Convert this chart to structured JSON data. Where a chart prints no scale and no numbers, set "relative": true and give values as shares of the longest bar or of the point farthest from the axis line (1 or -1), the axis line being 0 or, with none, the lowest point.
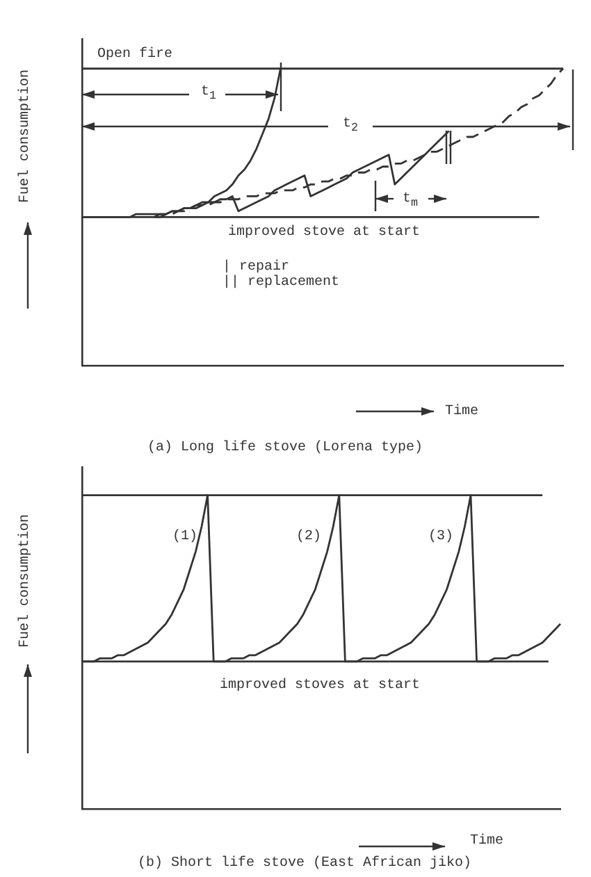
{
  "chart_data": [
    {
      "type": "line",
      "title": "(a) Long life stove (Lorena type)",
      "xlabel": "Time",
      "ylabel": "Fuel consumption",
      "relative": true,
      "marker": "none",
      "categories": [
        null,
        null,
        null,
        null,
        null,
        null,
        null,
        null,
        null,
        null,
        null,
        null,
        null,
        null,
        null,
        null,
        null,
        null,
        null,
        null,
        null,
        null,
        null,
        null,
        null,
        null,
        null,
        null,
        null,
        null,
        null,
        null,
        null,
        null,
        null,
        null,
        null,
        null,
        null,
        null,
        null,
        null,
        null,
        null,
        null,
        null,
        null,
        null,
        null,
        null,
        null,
        null,
        null,
        null,
        null,
        null,
        null,
        null,
        null,
        null,
        null,
        null,
        null,
        null,
        null,
        null,
        null,
        null,
        null,
        null,
        null,
        null,
        null,
        null,
        null,
        null,
        null,
        null,
        null,
        null,
        null
      ],
      "annotations": [
        "t$_{1}$",
        "t$_{2}$",
        "t$_{m}$",
        "| repair",
        "|| replacement"
      ],
      "series": [
        {
          "name": "Open fire",
          "color": "#333333",
          "values": [
            1,
            1,
            1,
            1,
            1,
            1,
            1,
            1,
            1,
            1,
            1,
            1,
            1,
            1,
            1,
            1,
            1,
            1,
            1,
            1,
            1,
            1,
            1,
            1,
            1,
            1,
            1,
            1,
            1,
            1,
            1,
            1,
            1,
            1,
            1,
            1,
            1,
            1,
            1,
            1,
            1,
            1,
            1,
            1,
            1,
            1,
            1,
            1,
            1,
            1,
            1,
            1,
            1,
            1,
            1,
            1,
            1,
            1,
            1,
            1,
            1,
            1,
            1,
            1,
            1,
            1,
            1,
            1,
            1,
            1,
            1,
            1,
            1,
            1,
            1,
            1,
            1,
            1,
            1,
            1,
            1
          ]
        },
        {
          "name": "improved stove at start",
          "color": "#333333",
          "values": [
            0.5,
            0.5,
            0.5,
            0.5,
            0.5,
            0.5,
            0.5,
            0.5,
            0.5,
            0.5,
            0.5,
            0.5,
            0.5,
            0.5,
            0.5,
            0.5,
            0.5,
            0.5,
            0.5,
            0.5,
            0.5,
            0.5,
            0.5,
            0.5,
            0.5,
            0.5,
            0.5,
            0.5,
            0.5,
            0.5,
            0.5,
            0.5,
            0.5,
            0.5,
            0.5,
            0.5,
            0.5,
            0.5,
            0.5,
            0.5,
            0.5,
            0.5,
            0.5,
            0.5,
            0.5,
            0.5,
            0.5,
            0.5,
            0.5,
            0.5,
            0.5,
            0.5,
            0.5,
            0.5,
            0.5,
            0.5,
            0.5,
            0.5,
            0.5,
            0.5,
            0.5,
            0.5,
            0.5,
            0.5,
            0.5,
            0.5,
            0.5,
            0.5,
            0.5,
            0.5,
            0.5,
            0.5,
            0.5,
            0.5,
            0.5,
            0.5,
            0.5,
            null,
            null,
            null,
            null
          ]
        },
        {
          "color": "#333333",
          "values": [
            0.5,
            0.5,
            0.5,
            0.5,
            0.5,
            0.5,
            0.5,
            0.5,
            0.5,
            0.51,
            0.51,
            0.51,
            0.51,
            0.51,
            0.51,
            0.52,
            0.52,
            0.53,
            0.53,
            0.54,
            0.55,
            0.55,
            0.57,
            0.58,
            0.59,
            0.61,
            0.64,
            0.66,
            0.69,
            0.73,
            0.78,
            0.83,
            0.9,
            1.0,
            null,
            null,
            null,
            null,
            null,
            null,
            null,
            null,
            null,
            null,
            null,
            null,
            null,
            null,
            null,
            null,
            null,
            null,
            null,
            null,
            null,
            null,
            null,
            null,
            null,
            null,
            null,
            null,
            null,
            null,
            null,
            null,
            null,
            null,
            null,
            null,
            null,
            null,
            null,
            null,
            null,
            null,
            null,
            null,
            null,
            null,
            null
          ]
        },
        {
          "color": "#333333",
          "values": [
            null,
            null,
            null,
            null,
            null,
            null,
            null,
            null,
            null,
            null,
            null,
            null,
            0.5,
            0.51,
            0.51,
            0.52,
            0.52,
            0.53,
            0.53,
            0.54,
            0.54,
            0.55,
            0.55,
            0.56,
            0.56,
            0.57,
            0.52,
            0.53,
            0.54,
            0.55,
            0.56,
            0.57,
            0.59,
            0.6,
            0.61,
            0.62,
            0.63,
            0.64,
            0.57,
            0.58,
            0.59,
            0.6,
            0.61,
            0.62,
            0.63,
            0.65,
            0.66,
            0.67,
            0.68,
            0.69,
            0.7,
            0.71,
            0.61,
            0.63,
            0.65,
            0.67,
            0.69,
            0.71,
            0.73,
            0.75,
            0.77,
            0.79,
            null,
            null,
            null,
            null,
            null,
            null,
            null,
            null,
            null,
            null,
            null,
            null,
            null,
            null,
            null,
            null,
            null,
            null,
            null
          ]
        },
        {
          "color": "#333333",
          "line_style": "dashed",
          "values": [
            null,
            null,
            null,
            null,
            null,
            null,
            null,
            null,
            null,
            null,
            null,
            null,
            0.5,
            0.5,
            0.51,
            0.51,
            0.52,
            0.52,
            0.53,
            0.53,
            0.54,
            0.54,
            0.55,
            0.55,
            0.56,
            0.56,
            0.56,
            0.57,
            0.57,
            0.57,
            0.58,
            0.58,
            0.58,
            0.59,
            0.59,
            0.59,
            0.6,
            0.6,
            0.61,
            0.61,
            0.62,
            0.62,
            0.63,
            0.63,
            0.64,
            0.64,
            0.65,
            0.65,
            0.66,
            0.66,
            0.67,
            0.67,
            0.68,
            0.68,
            0.69,
            0.69,
            0.7,
            0.71,
            0.72,
            0.72,
            0.73,
            0.74,
            0.75,
            0.76,
            0.77,
            0.77,
            0.78,
            0.79,
            0.8,
            0.81,
            0.82,
            0.84,
            0.85,
            0.87,
            0.88,
            0.9,
            0.91,
            0.93,
            0.95,
            0.98,
            1.0
          ]
        }
      ]
    },
    {
      "type": "line",
      "title": "(b) Short life stove (East African jiko)",
      "xlabel": "Time",
      "ylabel": "Fuel consumption",
      "relative": true,
      "marker": "none",
      "categories": [
        null,
        null,
        null,
        null,
        null,
        null,
        null,
        null,
        null,
        null,
        null,
        null,
        null,
        null,
        null,
        null,
        null,
        null,
        null,
        null,
        null,
        null,
        null,
        null,
        null,
        null,
        null,
        null,
        null,
        null,
        null,
        null,
        null,
        null,
        null,
        null,
        null,
        null,
        null,
        null,
        null,
        null,
        null,
        null,
        null,
        null,
        null,
        null,
        null,
        null,
        null,
        null,
        null,
        null,
        null,
        null,
        null,
        null,
        null,
        null,
        null,
        null,
        null,
        null,
        null,
        null,
        null,
        null,
        null,
        null,
        null,
        null,
        null,
        null,
        null,
        null,
        null,
        null,
        null,
        null,
        null
      ],
      "annotations": [
        "(1)",
        "(2)",
        "(3)"
      ],
      "series": [
        {
          "color": "#333333",
          "values": [
            1,
            1,
            1,
            1,
            1,
            1,
            1,
            1,
            1,
            1,
            1,
            1,
            1,
            1,
            1,
            1,
            1,
            1,
            1,
            1,
            1,
            1,
            1,
            1,
            1,
            1,
            1,
            1,
            1,
            1,
            1,
            1,
            1,
            1,
            1,
            1,
            1,
            1,
            1,
            1,
            1,
            1,
            1,
            1,
            1,
            1,
            1,
            1,
            1,
            1,
            1,
            1,
            1,
            1,
            1,
            1,
            1,
            1,
            1,
            1,
            1,
            1,
            1,
            1,
            1,
            1,
            1,
            1,
            1,
            1,
            1,
            1,
            1,
            1,
            1,
            1,
            1,
            1,
            null,
            null,
            null
          ]
        },
        {
          "name": "improved stoves at start",
          "color": "#333333",
          "values": [
            0.47,
            0.47,
            0.47,
            0.47,
            0.47,
            0.47,
            0.47,
            0.47,
            0.47,
            0.47,
            0.47,
            0.47,
            0.47,
            0.47,
            0.47,
            0.47,
            0.47,
            0.47,
            0.47,
            0.47,
            0.47,
            0.47,
            0.47,
            0.47,
            0.47,
            0.47,
            0.47,
            0.47,
            0.47,
            0.47,
            0.47,
            0.47,
            0.47,
            0.47,
            0.47,
            0.47,
            0.47,
            0.47,
            0.47,
            0.47,
            0.47,
            0.47,
            0.47,
            0.47,
            0.47,
            0.47,
            0.47,
            0.47,
            0.47,
            0.47,
            0.47,
            0.47,
            0.47,
            0.47,
            0.47,
            0.47,
            0.47,
            0.47,
            0.47,
            0.47,
            0.47,
            0.47,
            0.47,
            0.47,
            0.47,
            0.47,
            0.47,
            0.47,
            0.47,
            0.47,
            0.47,
            0.47,
            0.47,
            0.47,
            0.47,
            0.47,
            0.47,
            0.47,
            0.47,
            null,
            null
          ]
        },
        {
          "color": "#333333",
          "values": [
            0.47,
            0.47,
            0.47,
            0.48,
            0.48,
            0.48,
            0.49,
            0.49,
            0.5,
            0.51,
            0.52,
            0.53,
            0.55,
            0.57,
            0.59,
            0.62,
            0.66,
            0.7,
            0.76,
            0.82,
            0.9,
            1.0,
            0.47,
            0.47,
            0.47,
            0.48,
            0.48,
            0.48,
            0.49,
            0.49,
            0.5,
            0.51,
            0.52,
            0.53,
            0.55,
            0.57,
            0.59,
            0.62,
            0.66,
            0.7,
            0.76,
            0.82,
            0.9,
            1.0,
            0.47,
            0.47,
            0.47,
            0.48,
            0.48,
            0.48,
            0.49,
            0.49,
            0.5,
            0.51,
            0.52,
            0.53,
            0.55,
            0.57,
            0.59,
            0.62,
            0.66,
            0.7,
            0.76,
            0.82,
            0.9,
            1.0,
            0.47,
            0.47,
            0.47,
            0.48,
            0.48,
            0.48,
            0.49,
            0.49,
            0.5,
            0.51,
            0.52,
            0.53,
            0.55,
            0.57,
            0.59
          ]
        }
      ]
    }
  ]
}
